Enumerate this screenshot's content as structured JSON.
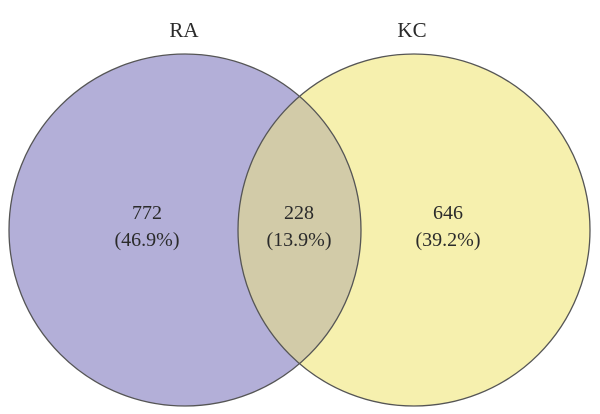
{
  "sets": [
    {
      "name": "RA",
      "color": "#b3afd8"
    },
    {
      "name": "KC",
      "color": "#f6f0ae"
    }
  ],
  "overlap_color": "#d2cba8",
  "outline_color": "#555555",
  "regions": {
    "ra_only": {
      "count": "772",
      "percent": "(46.9%)"
    },
    "intersection": {
      "count": "228",
      "percent": "(13.9%)"
    },
    "kc_only": {
      "count": "646",
      "percent": "(39.2%)"
    }
  }
}
